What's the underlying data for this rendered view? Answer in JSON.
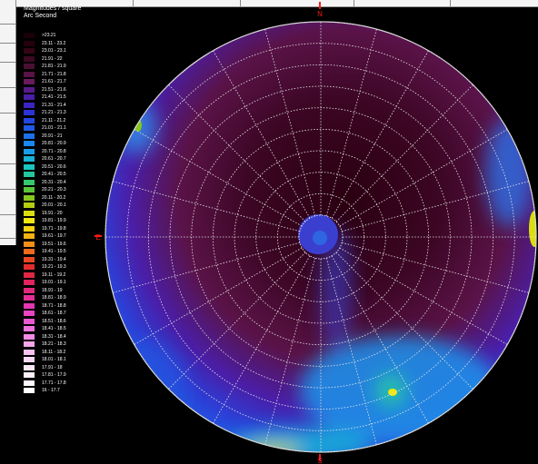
{
  "legend": {
    "title_line1": "Magnitudes / square",
    "title_line2": "Arc Second",
    "items": [
      {
        "label": ">23.21",
        "color": "#1a0008"
      },
      {
        "label": "23.11 - 23.2",
        "color": "#25000e"
      },
      {
        "label": "23.01 - 23.1",
        "color": "#330516"
      },
      {
        "label": "21.91 - 22",
        "color": "#3c0a22"
      },
      {
        "label": "21.81 - 21.9",
        "color": "#4a0f33"
      },
      {
        "label": "21.71 - 21.8",
        "color": "#5a1345"
      },
      {
        "label": "21.61 - 21.7",
        "color": "#6a1a5c"
      },
      {
        "label": "21.51 - 21.6",
        "color": "#5b1a8a"
      },
      {
        "label": "21.41 - 21.5",
        "color": "#4a1ea8"
      },
      {
        "label": "21.31 - 21.4",
        "color": "#3b24c2"
      },
      {
        "label": "21.21 - 21.3",
        "color": "#2c33d4"
      },
      {
        "label": "21.11 - 21.2",
        "color": "#2446de"
      },
      {
        "label": "21.01 - 21.1",
        "color": "#2059e4"
      },
      {
        "label": "20.91 - 21",
        "color": "#1d6fea"
      },
      {
        "label": "20.81 - 20.9",
        "color": "#1a86ee"
      },
      {
        "label": "20.71 - 20.8",
        "color": "#199ce8"
      },
      {
        "label": "20.61 - 20.7",
        "color": "#18b1d8"
      },
      {
        "label": "20.51 - 20.6",
        "color": "#1ac4c0"
      },
      {
        "label": "20.41 - 20.5",
        "color": "#22c89c"
      },
      {
        "label": "20.31 - 20.4",
        "color": "#38c66c"
      },
      {
        "label": "20.21 - 20.3",
        "color": "#5ac43a"
      },
      {
        "label": "20.11 - 20.2",
        "color": "#86c61e"
      },
      {
        "label": "20.01 - 20.1",
        "color": "#b4ce10"
      },
      {
        "label": "19.91 - 20",
        "color": "#dade10"
      },
      {
        "label": "19.81 - 19.9",
        "color": "#f2e612"
      },
      {
        "label": "19.71 - 19.8",
        "color": "#f6d012"
      },
      {
        "label": "19.61 - 19.7",
        "color": "#f6b214"
      },
      {
        "label": "19.51 - 19.6",
        "color": "#f48e18"
      },
      {
        "label": "19.41 - 19.5",
        "color": "#f0681e"
      },
      {
        "label": "19.31 - 19.4",
        "color": "#ea4624"
      },
      {
        "label": "19.21 - 19.3",
        "color": "#e22c2c"
      },
      {
        "label": "19.11 - 19.2",
        "color": "#e02844"
      },
      {
        "label": "19.01 - 19.1",
        "color": "#e0245e"
      },
      {
        "label": "18.91 - 19",
        "color": "#e2287a"
      },
      {
        "label": "18.81 - 18.9",
        "color": "#e42e96"
      },
      {
        "label": "18.71 - 18.8",
        "color": "#e636b0"
      },
      {
        "label": "18.61 - 18.7",
        "color": "#e844c4"
      },
      {
        "label": "18.51 - 18.6",
        "color": "#ea58d2"
      },
      {
        "label": "18.41 - 18.5",
        "color": "#ee70dc"
      },
      {
        "label": "18.31 - 18.4",
        "color": "#f08ae2"
      },
      {
        "label": "18.21 - 18.3",
        "color": "#f2a6e8"
      },
      {
        "label": "18.11 - 18.2",
        "color": "#f4c0ee"
      },
      {
        "label": "18.01 - 18.1",
        "color": "#f6d6f2"
      },
      {
        "label": "17.91 - 18",
        "color": "#f8e6f6"
      },
      {
        "label": "17.81 - 17.9",
        "color": "#fbf0fa"
      },
      {
        "label": "17.71 - 17.8",
        "color": "#fdf7fd"
      },
      {
        "label": "16 - 17.7",
        "color": "#ffffff"
      }
    ]
  },
  "map": {
    "marker_north": "N",
    "marker_east": "E",
    "marker_south": "S",
    "grid_color": "#e8e8e8",
    "marker_color": "#ff1a1a"
  }
}
